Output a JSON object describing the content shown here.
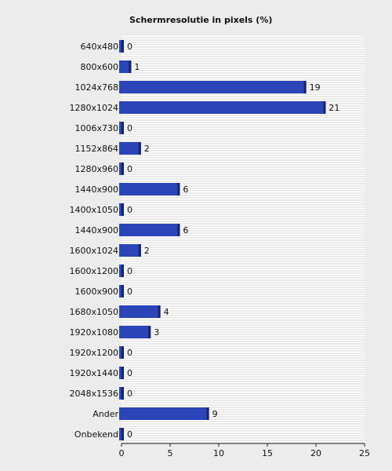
{
  "chart_data": {
    "type": "bar",
    "orientation": "horizontal",
    "title": "Schermresolutie in pixels (%)",
    "xlabel": "",
    "ylabel": "",
    "categories": [
      "640x480",
      "800x600",
      "1024x768",
      "1280x1024",
      "1006x730",
      "1152x864",
      "1280x960",
      "1440x900",
      "1400x1050",
      "1440x900",
      "1600x1024",
      "1600x1200",
      "1600x900",
      "1680x1050",
      "1920x1080",
      "1920x1200",
      "1920x1440",
      "2048x1536",
      "Ander",
      "Onbekend"
    ],
    "values": [
      0,
      1,
      19,
      21,
      0,
      2,
      0,
      6,
      0,
      6,
      2,
      0,
      0,
      4,
      3,
      0,
      0,
      0,
      9,
      0
    ],
    "xlim": [
      0,
      25
    ],
    "x_ticks": [
      0,
      5,
      10,
      15,
      20,
      25
    ],
    "grid": true,
    "legend": "none",
    "colors": {
      "bar": "#2b45b8",
      "bar_edge": "#17246b",
      "plot_bg": "#ffffff",
      "grid": "#d4d4d4",
      "page_bg": "#ececec"
    }
  }
}
